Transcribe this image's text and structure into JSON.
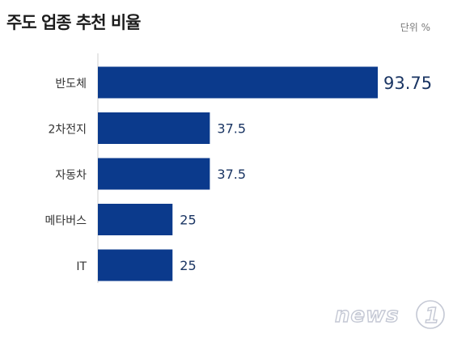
{
  "header": {
    "title": "주도 업종 추천 비율",
    "unit_label": "단위 %"
  },
  "watermark": {
    "text": "news1"
  },
  "colors": {
    "bar": "#0b3a8c",
    "value_label": "#1a3563",
    "category_label": "#333333",
    "axis": "#cfcfcf"
  },
  "chart_data": {
    "type": "bar",
    "orientation": "horizontal",
    "categories": [
      "반도체",
      "2차전지",
      "자동차",
      "메타버스",
      "IT"
    ],
    "values": [
      93.75,
      37.5,
      37.5,
      25,
      25
    ],
    "value_labels": [
      "93.75",
      "37.5",
      "37.5",
      "25",
      "25"
    ],
    "title": "주도 업종 추천 비율",
    "xlabel": "",
    "ylabel": "",
    "unit": "%",
    "xlim": [
      0,
      100
    ],
    "grid": false,
    "legend": "none"
  }
}
